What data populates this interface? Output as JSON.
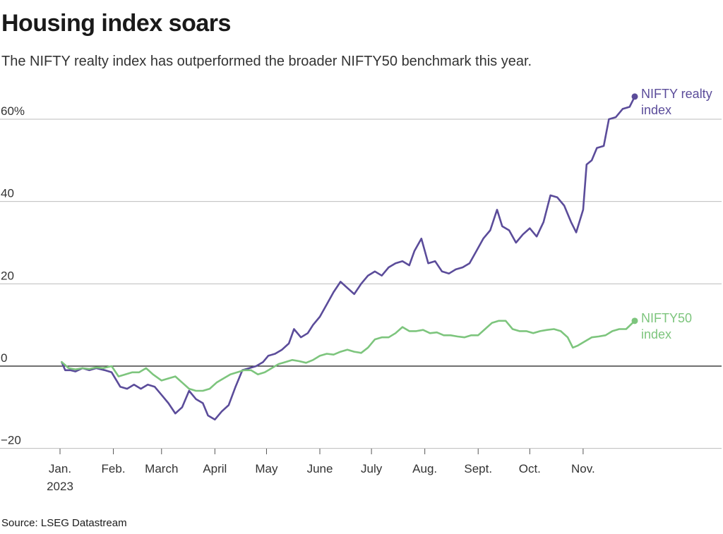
{
  "title": "Housing index soars",
  "subtitle": "The NIFTY realty index has outperformed the broader NIFTY50 benchmark this year.",
  "source": "Source: LSEG Datastream",
  "chart_data": {
    "type": "line",
    "y_ticks": [
      {
        "value": 60,
        "label": "60%"
      },
      {
        "value": 40,
        "label": "40"
      },
      {
        "value": 20,
        "label": "20"
      },
      {
        "value": 0,
        "label": "0"
      },
      {
        "value": -20,
        "label": "−20"
      }
    ],
    "ylim": [
      -20,
      65
    ],
    "x_range": [
      "2023-01-01",
      "2023-12-31"
    ],
    "x_ticks": [
      {
        "date": "2023-01-01",
        "label": "Jan.",
        "sublabel": "2023"
      },
      {
        "date": "2023-02-01",
        "label": "Feb.",
        "sublabel": ""
      },
      {
        "date": "2023-03-01",
        "label": "March",
        "sublabel": ""
      },
      {
        "date": "2023-04-01",
        "label": "April",
        "sublabel": ""
      },
      {
        "date": "2023-05-01",
        "label": "May",
        "sublabel": ""
      },
      {
        "date": "2023-06-01",
        "label": "June",
        "sublabel": ""
      },
      {
        "date": "2023-07-01",
        "label": "July",
        "sublabel": ""
      },
      {
        "date": "2023-08-01",
        "label": "Aug.",
        "sublabel": ""
      },
      {
        "date": "2023-09-01",
        "label": "Sept.",
        "sublabel": ""
      },
      {
        "date": "2023-10-01",
        "label": "Oct.",
        "sublabel": ""
      },
      {
        "date": "2023-11-01",
        "label": "Nov.",
        "sublabel": ""
      }
    ],
    "grid": true,
    "series": [
      {
        "name": "NIFTY realty index",
        "label_lines": [
          "NIFTY realty",
          "index"
        ],
        "color": "#5b4c9a",
        "points": [
          [
            "2023-01-02",
            1
          ],
          [
            "2023-01-04",
            -1
          ],
          [
            "2023-01-07",
            -1
          ],
          [
            "2023-01-10",
            -1.3
          ],
          [
            "2023-01-14",
            -0.5
          ],
          [
            "2023-01-18",
            -1
          ],
          [
            "2023-01-22",
            -0.5
          ],
          [
            "2023-01-27",
            -1
          ],
          [
            "2023-01-31",
            -1.5
          ],
          [
            "2023-02-05",
            -5
          ],
          [
            "2023-02-09",
            -5.5
          ],
          [
            "2023-02-13",
            -4.5
          ],
          [
            "2023-02-17",
            -5.5
          ],
          [
            "2023-02-21",
            -4.5
          ],
          [
            "2023-02-25",
            -5
          ],
          [
            "2023-03-01",
            -7
          ],
          [
            "2023-03-05",
            -9
          ],
          [
            "2023-03-09",
            -11.5
          ],
          [
            "2023-03-13",
            -10
          ],
          [
            "2023-03-17",
            -6
          ],
          [
            "2023-03-21",
            -8
          ],
          [
            "2023-03-25",
            -9
          ],
          [
            "2023-03-28",
            -12
          ],
          [
            "2023-04-01",
            -13
          ],
          [
            "2023-04-05",
            -11
          ],
          [
            "2023-04-09",
            -9.5
          ],
          [
            "2023-04-13",
            -5
          ],
          [
            "2023-04-17",
            -1
          ],
          [
            "2023-04-21",
            -0.5
          ],
          [
            "2023-04-25",
            0
          ],
          [
            "2023-04-29",
            1
          ],
          [
            "2023-05-02",
            2.5
          ],
          [
            "2023-05-06",
            3
          ],
          [
            "2023-05-10",
            4
          ],
          [
            "2023-05-14",
            5.5
          ],
          [
            "2023-05-17",
            9
          ],
          [
            "2023-05-21",
            7
          ],
          [
            "2023-05-25",
            8
          ],
          [
            "2023-05-28",
            10
          ],
          [
            "2023-06-01",
            12
          ],
          [
            "2023-06-05",
            15
          ],
          [
            "2023-06-09",
            18
          ],
          [
            "2023-06-13",
            20.5
          ],
          [
            "2023-06-17",
            19
          ],
          [
            "2023-06-21",
            17.5
          ],
          [
            "2023-06-25",
            20
          ],
          [
            "2023-06-29",
            22
          ],
          [
            "2023-07-03",
            23
          ],
          [
            "2023-07-07",
            22
          ],
          [
            "2023-07-11",
            24
          ],
          [
            "2023-07-15",
            25
          ],
          [
            "2023-07-19",
            25.5
          ],
          [
            "2023-07-23",
            24.5
          ],
          [
            "2023-07-26",
            28
          ],
          [
            "2023-07-30",
            31
          ],
          [
            "2023-08-03",
            25
          ],
          [
            "2023-08-07",
            25.5
          ],
          [
            "2023-08-11",
            23
          ],
          [
            "2023-08-15",
            22.5
          ],
          [
            "2023-08-19",
            23.5
          ],
          [
            "2023-08-23",
            24
          ],
          [
            "2023-08-27",
            25
          ],
          [
            "2023-08-31",
            28
          ],
          [
            "2023-09-04",
            31
          ],
          [
            "2023-09-08",
            33
          ],
          [
            "2023-09-12",
            38
          ],
          [
            "2023-09-15",
            34
          ],
          [
            "2023-09-19",
            33
          ],
          [
            "2023-09-23",
            30
          ],
          [
            "2023-09-27",
            32
          ],
          [
            "2023-10-01",
            33.5
          ],
          [
            "2023-10-05",
            31.5
          ],
          [
            "2023-10-09",
            35
          ],
          [
            "2023-10-13",
            41.5
          ],
          [
            "2023-10-17",
            41
          ],
          [
            "2023-10-21",
            39
          ],
          [
            "2023-10-25",
            35
          ],
          [
            "2023-10-28",
            32.5
          ],
          [
            "2023-11-01",
            38
          ],
          [
            "2023-11-03",
            49
          ],
          [
            "2023-11-06",
            50
          ],
          [
            "2023-11-09",
            53
          ],
          [
            "2023-11-13",
            53.5
          ],
          [
            "2023-11-16",
            60
          ],
          [
            "2023-11-20",
            60.5
          ],
          [
            "2023-11-24",
            62.5
          ],
          [
            "2023-11-28",
            63
          ],
          [
            "2023-12-01",
            65.5
          ]
        ]
      },
      {
        "name": "NIFTY50 index",
        "label_lines": [
          "NIFTY50",
          "index"
        ],
        "color": "#7dc57d",
        "points": [
          [
            "2023-01-02",
            1
          ],
          [
            "2023-01-06",
            -0.5
          ],
          [
            "2023-01-10",
            -0.8
          ],
          [
            "2023-01-14",
            -0.5
          ],
          [
            "2023-01-18",
            -0.7
          ],
          [
            "2023-01-22",
            -0.3
          ],
          [
            "2023-01-26",
            -0.5
          ],
          [
            "2023-01-31",
            0
          ],
          [
            "2023-02-04",
            -2.5
          ],
          [
            "2023-02-08",
            -2
          ],
          [
            "2023-02-12",
            -1.5
          ],
          [
            "2023-02-16",
            -1.5
          ],
          [
            "2023-02-20",
            -0.5
          ],
          [
            "2023-02-24",
            -2
          ],
          [
            "2023-03-01",
            -3.5
          ],
          [
            "2023-03-05",
            -3
          ],
          [
            "2023-03-09",
            -2.5
          ],
          [
            "2023-03-13",
            -4
          ],
          [
            "2023-03-17",
            -5.5
          ],
          [
            "2023-03-21",
            -6
          ],
          [
            "2023-03-25",
            -6
          ],
          [
            "2023-03-29",
            -5.5
          ],
          [
            "2023-04-02",
            -4
          ],
          [
            "2023-04-06",
            -3
          ],
          [
            "2023-04-10",
            -2
          ],
          [
            "2023-04-14",
            -1.5
          ],
          [
            "2023-04-18",
            -1
          ],
          [
            "2023-04-22",
            -1
          ],
          [
            "2023-04-26",
            -2
          ],
          [
            "2023-04-30",
            -1.5
          ],
          [
            "2023-05-04",
            -0.5
          ],
          [
            "2023-05-08",
            0.5
          ],
          [
            "2023-05-12",
            1
          ],
          [
            "2023-05-16",
            1.5
          ],
          [
            "2023-05-20",
            1.2
          ],
          [
            "2023-05-24",
            0.8
          ],
          [
            "2023-05-28",
            1.5
          ],
          [
            "2023-06-01",
            2.5
          ],
          [
            "2023-06-05",
            3
          ],
          [
            "2023-06-09",
            2.8
          ],
          [
            "2023-06-13",
            3.5
          ],
          [
            "2023-06-17",
            4
          ],
          [
            "2023-06-21",
            3.5
          ],
          [
            "2023-06-25",
            3.2
          ],
          [
            "2023-06-29",
            4.5
          ],
          [
            "2023-07-03",
            6.5
          ],
          [
            "2023-07-07",
            7
          ],
          [
            "2023-07-11",
            7
          ],
          [
            "2023-07-15",
            8
          ],
          [
            "2023-07-19",
            9.5
          ],
          [
            "2023-07-23",
            8.5
          ],
          [
            "2023-07-27",
            8.5
          ],
          [
            "2023-07-31",
            8.8
          ],
          [
            "2023-08-04",
            8
          ],
          [
            "2023-08-08",
            8.2
          ],
          [
            "2023-08-12",
            7.5
          ],
          [
            "2023-08-16",
            7.5
          ],
          [
            "2023-08-20",
            7.2
          ],
          [
            "2023-08-24",
            7
          ],
          [
            "2023-08-28",
            7.5
          ],
          [
            "2023-09-01",
            7.5
          ],
          [
            "2023-09-05",
            9
          ],
          [
            "2023-09-09",
            10.5
          ],
          [
            "2023-09-13",
            11
          ],
          [
            "2023-09-17",
            11
          ],
          [
            "2023-09-21",
            9
          ],
          [
            "2023-09-25",
            8.5
          ],
          [
            "2023-09-29",
            8.5
          ],
          [
            "2023-10-03",
            8
          ],
          [
            "2023-10-07",
            8.5
          ],
          [
            "2023-10-11",
            8.8
          ],
          [
            "2023-10-15",
            9
          ],
          [
            "2023-10-19",
            8.5
          ],
          [
            "2023-10-23",
            7
          ],
          [
            "2023-10-26",
            4.5
          ],
          [
            "2023-10-29",
            5
          ],
          [
            "2023-11-02",
            6
          ],
          [
            "2023-11-06",
            7
          ],
          [
            "2023-11-10",
            7.2
          ],
          [
            "2023-11-14",
            7.5
          ],
          [
            "2023-11-18",
            8.5
          ],
          [
            "2023-11-22",
            9
          ],
          [
            "2023-11-26",
            9
          ],
          [
            "2023-12-01",
            11
          ]
        ]
      }
    ]
  }
}
